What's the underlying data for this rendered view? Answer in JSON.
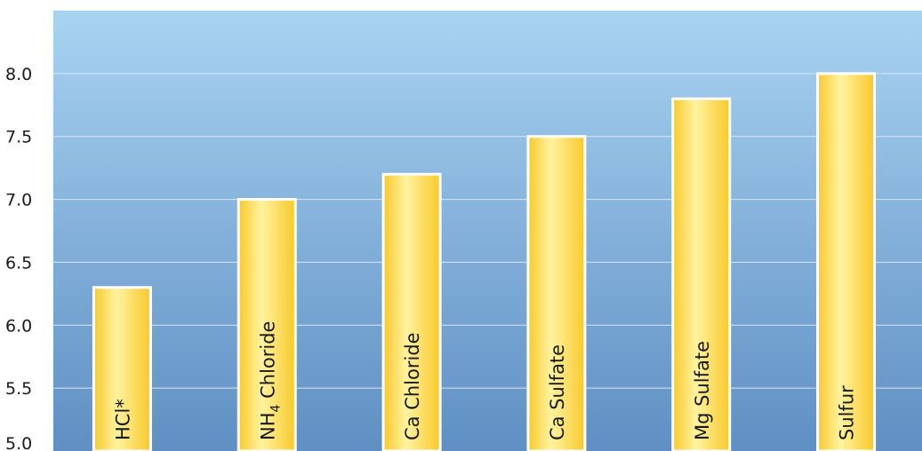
{
  "chart_data": {
    "type": "bar",
    "title": "",
    "xlabel": "",
    "ylabel": "",
    "categories": [
      "HCl*",
      "NH4 Chloride",
      "Ca Chloride",
      "Ca Sulfate",
      "Mg Sulfate",
      "Sulfur"
    ],
    "values": [
      6.3,
      7.0,
      7.2,
      7.5,
      7.8,
      8.0
    ],
    "ylim": [
      5.0,
      8.5
    ],
    "yticks": [
      "5.0",
      "5.5",
      "6.0",
      "6.5",
      "7.0",
      "7.5",
      "8.0"
    ],
    "grid": true,
    "legend": "none",
    "colors": {
      "background_top": "#a9d3f2",
      "background_bottom": "#5f8fc3",
      "bar_light": "#fff3a0",
      "bar_main": "#f8c92a",
      "bar_edge": "#ffffff",
      "gridline": "#d7e6f4"
    }
  }
}
